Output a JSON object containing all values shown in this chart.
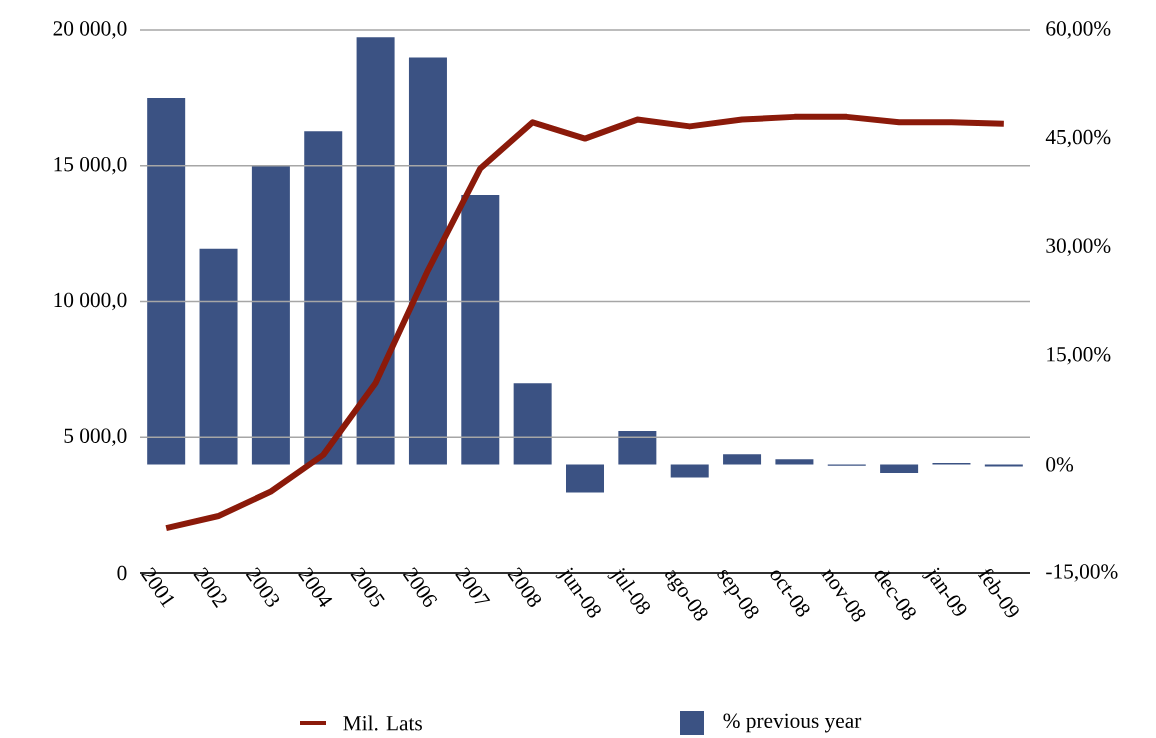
{
  "chart_data": {
    "type": "bar",
    "categories": [
      "2001",
      "2002",
      "2003",
      "2004",
      "2005",
      "2006",
      "2007",
      "2008",
      "jun-08",
      "jul-08",
      "ago-08",
      "sep-08",
      "oct-08",
      "nov-08",
      "dec-08",
      "jan-09",
      "feb-09"
    ],
    "series": [
      {
        "name": "Mil. Lats",
        "type": "line",
        "color": "#8b1a0a",
        "values": [
          1650,
          2100,
          3000,
          4350,
          7000,
          11150,
          14900,
          16600,
          16000,
          16700,
          16450,
          16700,
          16800,
          16800,
          16600,
          16600,
          16550
        ]
      },
      {
        "name": "% previous year",
        "axis": "y2",
        "color": "#3b5283",
        "values": [
          50.6,
          29.8,
          41.2,
          46.0,
          59.0,
          56.2,
          37.2,
          11.2,
          -3.9,
          4.6,
          -1.8,
          1.4,
          0.7,
          -0.2,
          -1.2,
          0.2,
          -0.3
        ]
      }
    ],
    "ylim": [
      0,
      20000
    ],
    "yticks": [
      {
        "value": 0,
        "label": "0"
      },
      {
        "value": 5000,
        "label": "5 000,0"
      },
      {
        "value": 10000,
        "label": "10 000,0"
      },
      {
        "value": 15000,
        "label": "15 000,0"
      },
      {
        "value": 20000,
        "label": "20 000,0"
      }
    ],
    "y2lim": [
      -15,
      60
    ],
    "y2ticks": [
      {
        "value": -15,
        "label": "-15,00%"
      },
      {
        "value": 0,
        "label": "0%"
      },
      {
        "value": 15,
        "label": "15,00%"
      },
      {
        "value": 30,
        "label": "30,00%"
      },
      {
        "value": 45,
        "label": "45,00%"
      },
      {
        "value": 60,
        "label": "60,00%"
      }
    ],
    "grid": "y",
    "legend": "bottom",
    "marker": "none"
  }
}
